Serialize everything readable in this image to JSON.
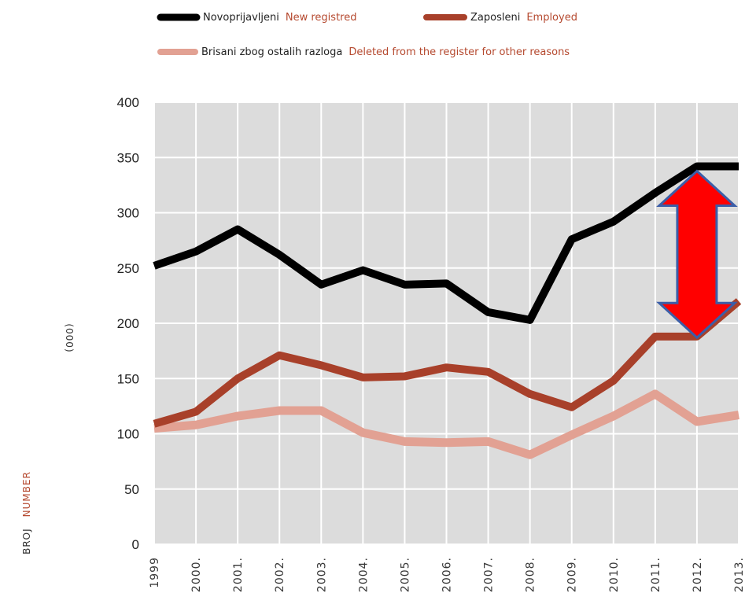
{
  "legend": [
    {
      "label_hr": "Novoprijavljeni",
      "label_en": "New registred"
    },
    {
      "label_hr": "Zaposleni",
      "label_en": "Employed"
    },
    {
      "label_hr": "Brisani zbog ostalih razloga",
      "label_en": "Deleted from the register for other reasons"
    }
  ],
  "unit_label": "(000)",
  "ylabel_hr": "BROJ",
  "ylabel_en": "NUMBER",
  "colors": {
    "plot_bg": "#dcdcdc",
    "grid": "#ffffff",
    "series_new": "#000000",
    "series_employed": "#a8402a",
    "series_deleted": "#e2a193",
    "label_en": "#b5492f",
    "arrow_fill": "#ff0000",
    "arrow_stroke": "#3b5ea8"
  },
  "annotation": {
    "type": "double-arrow",
    "from_year": "2012.",
    "from_value": 342,
    "to_value": 197
  },
  "chart_data": {
    "type": "line",
    "title": "",
    "xlabel": "",
    "ylabel": "",
    "categories": [
      "1999",
      "2000.",
      "2001.",
      "2002.",
      "2003.",
      "2004.",
      "2005.",
      "2006.",
      "2007.",
      "2008.",
      "2009.",
      "2010.",
      "2011.",
      "2012.",
      "2013."
    ],
    "ylim": [
      0,
      400
    ],
    "yticks": [
      0,
      50,
      100,
      150,
      200,
      250,
      300,
      350,
      400
    ],
    "grid": true,
    "legend_position": "top",
    "series": [
      {
        "name": "Novoprijavljeni / New registred",
        "color": "#000000",
        "values": [
          252,
          265,
          285,
          262,
          235,
          248,
          235,
          236,
          210,
          203,
          276,
          292,
          318,
          342,
          342
        ]
      },
      {
        "name": "Zaposleni / Employed",
        "color": "#a8402a",
        "values": [
          109,
          120,
          150,
          171,
          162,
          151,
          152,
          160,
          156,
          136,
          124,
          148,
          188,
          188,
          220
        ]
      },
      {
        "name": "Brisani zbog ostalih razloga / Deleted from the register for other reasons",
        "color": "#e2a193",
        "values": [
          105,
          108,
          116,
          121,
          121,
          101,
          93,
          92,
          93,
          81,
          99,
          116,
          136,
          111,
          117
        ]
      }
    ]
  }
}
